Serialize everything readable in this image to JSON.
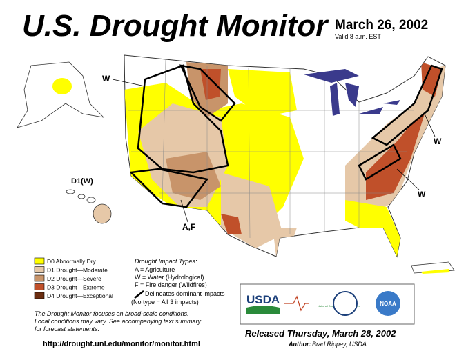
{
  "header": {
    "title": "U.S. Drought Monitor",
    "date": "March 26, 2002",
    "valid": "Valid 8 a.m. EST"
  },
  "map": {
    "labels": [
      "W",
      "D1(W)",
      "A,F",
      "W",
      "W"
    ]
  },
  "legend": {
    "items": [
      {
        "label": "D0 Abnormally Dry",
        "color": "#ffff00"
      },
      {
        "label": "D1 Drought—Moderate",
        "color": "#e6c8a8"
      },
      {
        "label": "D2 Drought—Severe",
        "color": "#c8946a"
      },
      {
        "label": "D3 Drought—Extreme",
        "color": "#c0502a"
      },
      {
        "label": "D4 Drought—Exceptional",
        "color": "#6b2d10"
      }
    ]
  },
  "impacts": {
    "title": "Drought Impact Types:",
    "lines": [
      "A = Agriculture",
      "W = Water (Hydrological)",
      "F = Fire danger (Wildfires)"
    ],
    "delineates": "Delineates dominant impacts",
    "note": "(No type = All 3 impacts)"
  },
  "note": [
    "The Drought Monitor focuses on broad-scale conditions.",
    "Local conditions may vary. See accompanying text summary",
    "for forecast statements."
  ],
  "url": "http://drought.unl.edu/monitor/monitor.html",
  "release": {
    "date": "Released Thursday, March 28, 2002",
    "author_label": "Author:",
    "author": "Brad Rippey, USDA"
  },
  "logos": {
    "usda": "USDA",
    "ndmc": "National Drought Mitigation Center",
    "noaa": "NOAA"
  }
}
